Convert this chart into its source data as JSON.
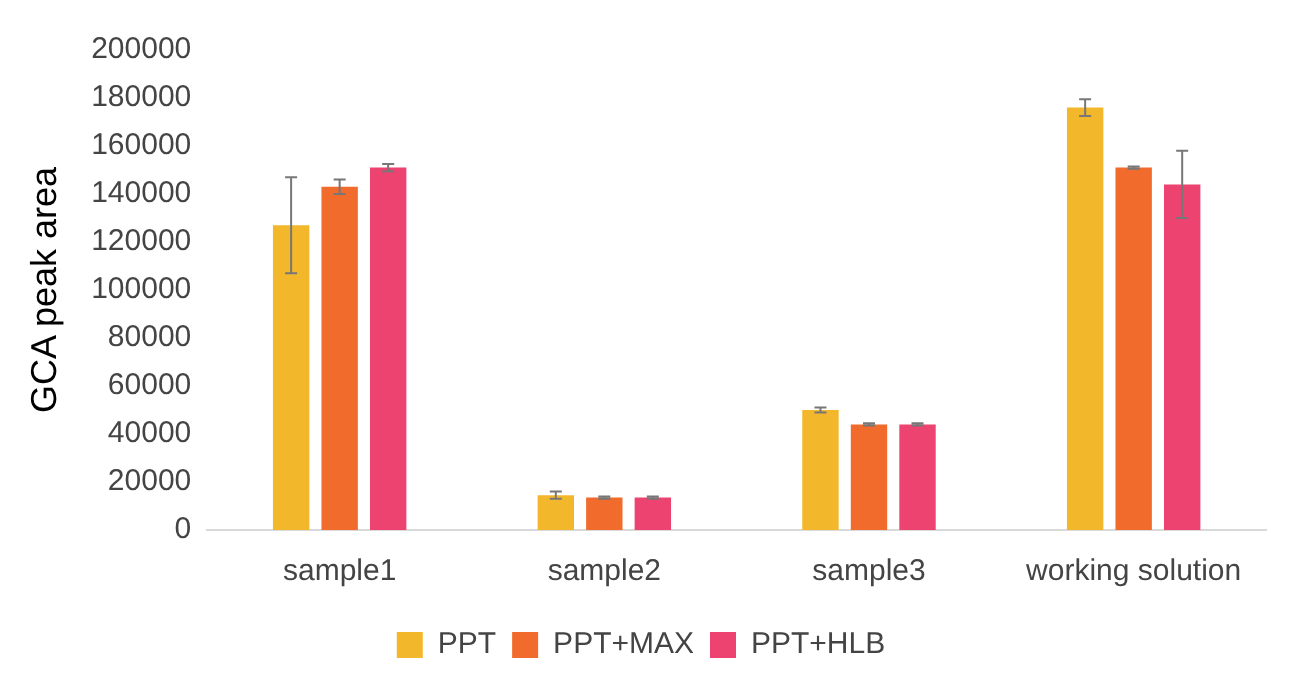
{
  "chart_data": {
    "type": "bar",
    "ylabel": "GCA peak area",
    "categories": [
      "sample1",
      "sample2",
      "sample3",
      "working solution"
    ],
    "series": [
      {
        "name": "PPT",
        "color": "#f2b72a",
        "values": [
          127000,
          14500,
          50000,
          176000
        ],
        "errors": [
          20000,
          1500,
          1000,
          3500
        ]
      },
      {
        "name": "PPT+MAX",
        "color": "#f06b2c",
        "values": [
          143000,
          13500,
          44000,
          151000
        ],
        "errors": [
          3000,
          500,
          500,
          500
        ]
      },
      {
        "name": "PPT+HLB",
        "color": "#ec4371",
        "values": [
          151000,
          13500,
          44000,
          144000
        ],
        "errors": [
          1500,
          500,
          500,
          14000
        ]
      }
    ],
    "ylim": [
      0,
      200000
    ],
    "yticks": [
      0,
      20000,
      40000,
      60000,
      80000,
      100000,
      120000,
      140000,
      160000,
      180000,
      200000
    ],
    "grid": false,
    "legend": "bottom"
  }
}
